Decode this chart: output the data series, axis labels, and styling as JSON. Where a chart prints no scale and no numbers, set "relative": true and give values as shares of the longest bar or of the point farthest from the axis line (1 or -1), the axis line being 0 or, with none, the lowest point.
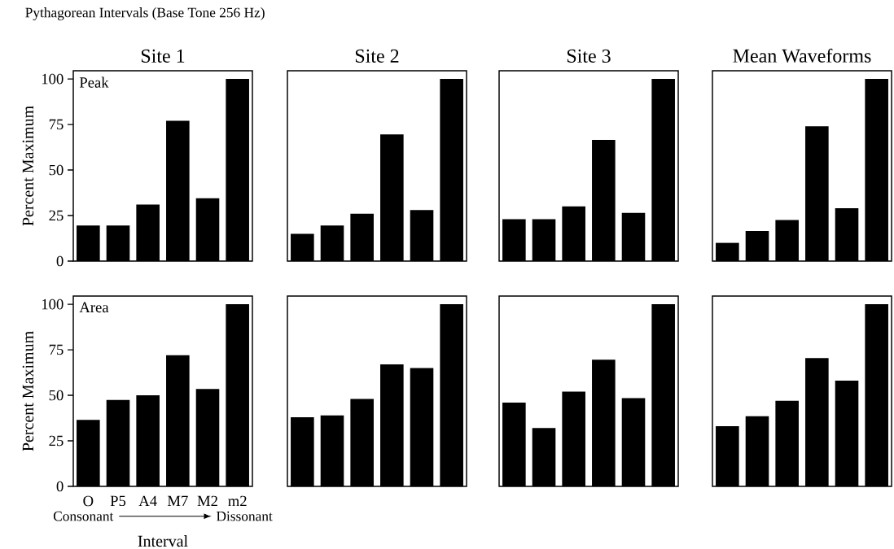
{
  "chart_data": [
    {
      "type": "bar",
      "title": "Pythagorean Intervals (Base Tone 256 Hz)",
      "subtitle": "Site 1",
      "ylabel": "Percent Maximum",
      "annotations": [
        "Peak"
      ],
      "categories": [
        null,
        null,
        null,
        null,
        null,
        null
      ],
      "values": [
        19.5,
        19.5,
        31,
        77,
        34.5,
        100
      ],
      "color": "#000000",
      "ylim": [
        0,
        104.5
      ],
      "yticks": [
        0,
        25,
        50,
        75,
        100
      ],
      "tick_labels": "y"
    },
    {
      "type": "bar",
      "title": "Site 2",
      "relative": true,
      "categories": [
        null,
        null,
        null,
        null,
        null,
        null
      ],
      "values": [
        0.15,
        0.195,
        0.26,
        0.695,
        0.28,
        1
      ],
      "color": "#000000"
    },
    {
      "type": "bar",
      "title": "Site 3",
      "relative": true,
      "categories": [
        null,
        null,
        null,
        null,
        null,
        null
      ],
      "values": [
        0.23,
        0.23,
        0.3,
        0.665,
        0.265,
        1
      ],
      "color": "#000000"
    },
    {
      "type": "bar",
      "title": "Mean Waveforms",
      "relative": true,
      "categories": [
        null,
        null,
        null,
        null,
        null,
        null
      ],
      "values": [
        0.1,
        0.165,
        0.225,
        0.74,
        0.29,
        1
      ],
      "color": "#000000"
    },
    {
      "type": "bar",
      "ylabel": "Percent Maximum",
      "xlabel": "Interval",
      "annotations": [
        "Area",
        "Consonant",
        "Dissonant"
      ],
      "categories": [
        "O",
        "P5",
        "A4",
        "M7",
        "M2",
        "m2"
      ],
      "values": [
        36.5,
        47.5,
        50,
        72,
        53.5,
        100
      ],
      "color": "#000000",
      "ylim": [
        0,
        104.5
      ],
      "yticks": [
        0,
        25,
        50,
        75,
        100
      ]
    },
    {
      "type": "bar",
      "relative": true,
      "categories": [
        null,
        null,
        null,
        null,
        null,
        null
      ],
      "values": [
        0.38,
        0.39,
        0.48,
        0.67,
        0.65,
        1
      ],
      "color": "#000000"
    },
    {
      "type": "bar",
      "relative": true,
      "categories": [
        null,
        null,
        null,
        null,
        null,
        null
      ],
      "values": [
        0.46,
        0.32,
        0.52,
        0.695,
        0.485,
        1
      ],
      "color": "#000000"
    },
    {
      "type": "bar",
      "relative": true,
      "categories": [
        null,
        null,
        null,
        null,
        null,
        null
      ],
      "values": [
        0.33,
        0.385,
        0.47,
        0.705,
        0.58,
        1
      ],
      "color": "#000000"
    }
  ]
}
